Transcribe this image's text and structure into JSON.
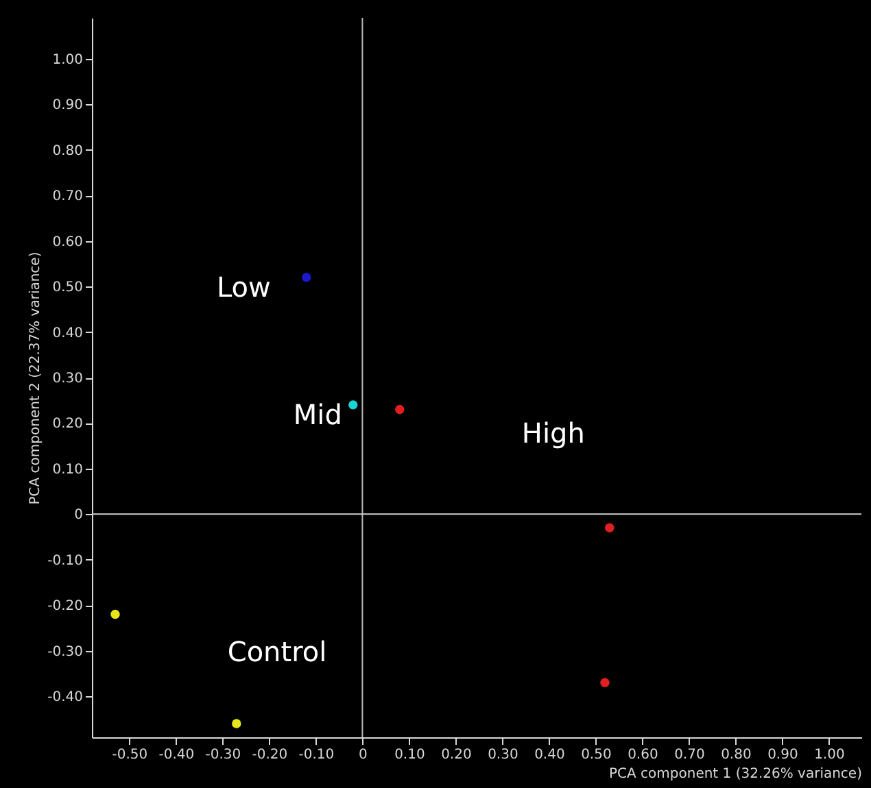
{
  "chart_data": {
    "type": "scatter",
    "xlabel": "PCA component 1 (32.26% variance)",
    "ylabel": "PCA component 2 (22.37% variance)",
    "series": [
      {
        "name": "Low",
        "color": "#1a1acc",
        "x": [
          -0.12
        ],
        "values": [
          0.52
        ]
      },
      {
        "name": "Mid",
        "color": "#19d6d6",
        "x": [
          -0.02
        ],
        "values": [
          0.24
        ]
      },
      {
        "name": "High",
        "color": "#e02020",
        "x": [
          0.08,
          0.53,
          0.52
        ],
        "values": [
          0.23,
          -0.03,
          -0.37
        ]
      },
      {
        "name": "Control",
        "color": "#e6e619",
        "x": [
          -0.53,
          -0.27
        ],
        "values": [
          -0.22,
          -0.46
        ]
      }
    ],
    "xlim": [
      -0.58,
      1.07
    ],
    "ylim": [
      -0.49,
      1.09
    ],
    "xticks": [
      {
        "value": -0.5,
        "label": "-0.50"
      },
      {
        "value": -0.4,
        "label": "-0.40"
      },
      {
        "value": -0.3,
        "label": "-0.30"
      },
      {
        "value": -0.2,
        "label": "-0.20"
      },
      {
        "value": -0.1,
        "label": "-0.10"
      },
      0,
      {
        "value": 0.1,
        "label": "0.10"
      },
      {
        "value": 0.2,
        "label": "0.20"
      },
      {
        "value": 0.3,
        "label": "0.30"
      },
      {
        "value": 0.4,
        "label": "0.40"
      },
      {
        "value": 0.5,
        "label": "0.50"
      },
      {
        "value": 0.6,
        "label": "0.60"
      },
      {
        "value": 0.7,
        "label": "0.70"
      },
      {
        "value": 0.8,
        "label": "0.80"
      },
      {
        "value": 0.9,
        "label": "0.90"
      },
      {
        "value": 1.0,
        "label": "1.00"
      }
    ],
    "yticks": [
      {
        "value": -0.4,
        "label": "-0.40"
      },
      {
        "value": -0.3,
        "label": "-0.30"
      },
      {
        "value": -0.2,
        "label": "-0.20"
      },
      {
        "value": -0.1,
        "label": "-0.10"
      },
      0,
      {
        "value": 0.1,
        "label": "0.10"
      },
      {
        "value": 0.2,
        "label": "0.20"
      },
      {
        "value": 0.3,
        "label": "0.30"
      },
      {
        "value": 0.4,
        "label": "0.40"
      },
      {
        "value": 0.5,
        "label": "0.50"
      },
      {
        "value": 0.6,
        "label": "0.60"
      },
      {
        "value": 0.7,
        "label": "0.70"
      },
      {
        "value": 0.8,
        "label": "0.80"
      },
      {
        "value": 0.9,
        "label": "0.90"
      },
      {
        "value": 1.0,
        "label": "1.00"
      }
    ],
    "ref_lines": [
      {
        "axis": "x",
        "value": 0,
        "color": "#b8b8b8"
      },
      {
        "axis": "y",
        "value": 0,
        "color": "#d0d0d0"
      }
    ],
    "grid": false,
    "legend": false,
    "marker": "circle"
  }
}
